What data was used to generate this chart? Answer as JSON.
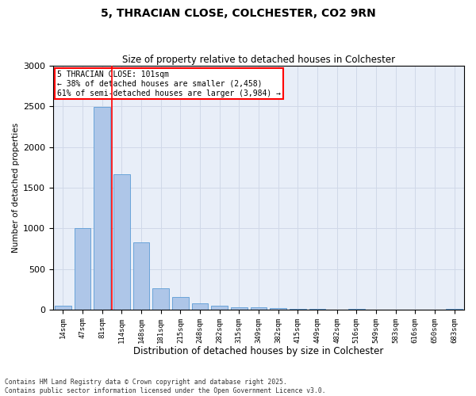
{
  "title1": "5, THRACIAN CLOSE, COLCHESTER, CO2 9RN",
  "title2": "Size of property relative to detached houses in Colchester",
  "xlabel": "Distribution of detached houses by size in Colchester",
  "ylabel": "Number of detached properties",
  "bar_labels": [
    "14sqm",
    "47sqm",
    "81sqm",
    "114sqm",
    "148sqm",
    "181sqm",
    "215sqm",
    "248sqm",
    "282sqm",
    "315sqm",
    "349sqm",
    "382sqm",
    "415sqm",
    "449sqm",
    "482sqm",
    "516sqm",
    "549sqm",
    "583sqm",
    "616sqm",
    "650sqm",
    "683sqm"
  ],
  "bar_values": [
    50,
    1000,
    2490,
    1670,
    830,
    265,
    155,
    80,
    45,
    30,
    30,
    15,
    10,
    5,
    0,
    5,
    0,
    0,
    0,
    0,
    5
  ],
  "bar_color": "#aec6e8",
  "bar_edgecolor": "#5b9bd5",
  "vline_color": "red",
  "annotation_title": "5 THRACIAN CLOSE: 101sqm",
  "annotation_line1": "← 38% of detached houses are smaller (2,458)",
  "annotation_line2": "61% of semi-detached houses are larger (3,984) →",
  "annotation_box_color": "red",
  "ylim": [
    0,
    3000
  ],
  "yticks": [
    0,
    500,
    1000,
    1500,
    2000,
    2500,
    3000
  ],
  "grid_color": "#d0d8e8",
  "bg_color": "#e8eef8",
  "footnote1": "Contains HM Land Registry data © Crown copyright and database right 2025.",
  "footnote2": "Contains public sector information licensed under the Open Government Licence v3.0."
}
